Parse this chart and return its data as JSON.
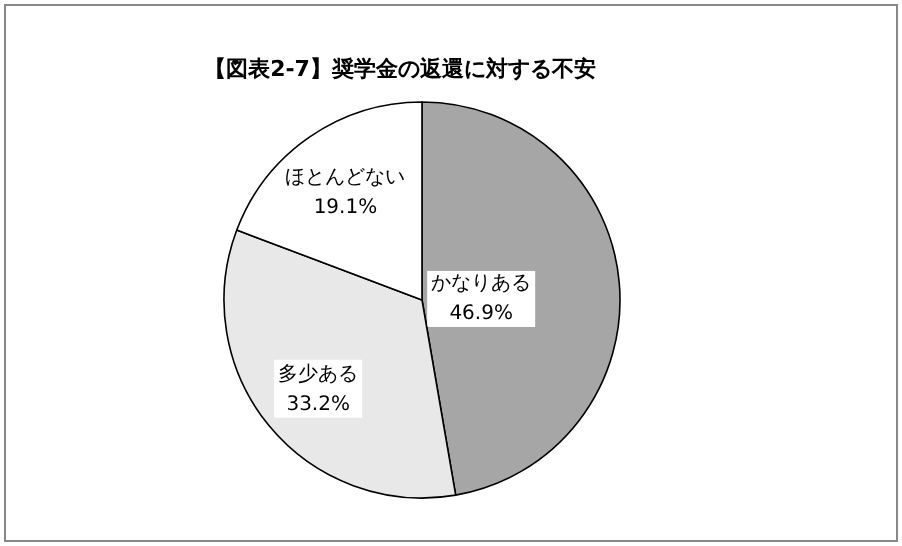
{
  "chart_data": {
    "type": "pie",
    "title": "【図表2-7】奨学金の返還に対する不安",
    "categories": [
      "かなりある",
      "多少ある",
      "ほとんどない"
    ],
    "values": [
      46.9,
      33.2,
      19.1
    ],
    "value_labels": [
      "46.9%",
      "33.2%",
      "19.1%"
    ],
    "colors": [
      "#a6a6a6",
      "#e8e8e8",
      "#ffffff"
    ]
  }
}
